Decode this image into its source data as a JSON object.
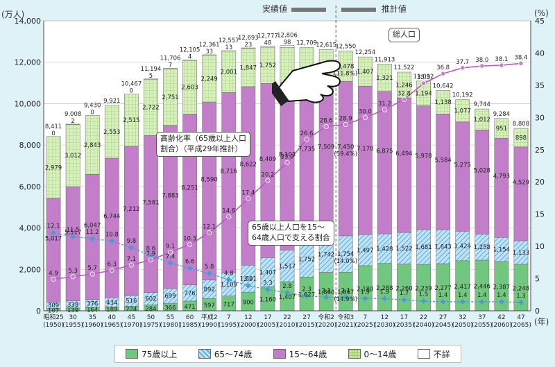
{
  "header": {
    "jisseki": "実績値",
    "suikei": "推計値",
    "left_unit": "(万人)",
    "right_unit": "(%)",
    "year_unit": "(年)"
  },
  "callouts": {
    "total": "総人口",
    "rate": "高齢化率（65歳以上人口\n割合）（平成29年推計）",
    "support": "65歳以上人口を15～\n64歳人口で支える割合"
  },
  "legend": [
    {
      "label": "75歳以上",
      "color": "#72c77f",
      "pattern": "solid"
    },
    {
      "label": "65～74歳",
      "color": "#8ccfee",
      "pattern": "hatch"
    },
    {
      "label": "15～64歳",
      "color": "#c27ec8",
      "pattern": "solid"
    },
    {
      "label": "0～14歳",
      "color": "#c5e6a0",
      "pattern": "grid"
    },
    {
      "label": "不詳",
      "color": "#ffffff",
      "pattern": "solid"
    }
  ],
  "chart_data": {
    "type": "bar",
    "stacked": true,
    "left_axis": {
      "min": 0,
      "max": 14000,
      "ticks": [
        0,
        2000,
        4000,
        6000,
        8000,
        10000,
        12000,
        14000
      ]
    },
    "right_axis": {
      "min": 0,
      "max": 45,
      "ticks": [
        0,
        5,
        10,
        15,
        20,
        25,
        30,
        35,
        40,
        45
      ]
    },
    "divider_after_index": 14,
    "categories": [
      {
        "era": "昭和25",
        "year": "(1950)"
      },
      {
        "era": "30",
        "year": "(1955)"
      },
      {
        "era": "35",
        "year": "(1960)"
      },
      {
        "era": "40",
        "year": "(1965)"
      },
      {
        "era": "45",
        "year": "(1970)"
      },
      {
        "era": "50",
        "year": "(1975)"
      },
      {
        "era": "55",
        "year": "(1980)"
      },
      {
        "era": "60",
        "year": "(1985)"
      },
      {
        "era": "平成2",
        "year": "(1990)"
      },
      {
        "era": "7",
        "year": "(1995)"
      },
      {
        "era": "12",
        "year": "(2000)"
      },
      {
        "era": "17",
        "year": "(2005)"
      },
      {
        "era": "22",
        "year": "(2010)"
      },
      {
        "era": "27",
        "year": "(2015)"
      },
      {
        "era": "令和2",
        "year": "(2020)"
      },
      {
        "era": "令和3",
        "year": "(2021)"
      },
      {
        "era": "7",
        "year": "(2025)"
      },
      {
        "era": "12",
        "year": "(2030)"
      },
      {
        "era": "17",
        "year": "(2035)"
      },
      {
        "era": "22",
        "year": "(2040)"
      },
      {
        "era": "27",
        "year": "(2045)"
      },
      {
        "era": "32",
        "year": "(2050)"
      },
      {
        "era": "37",
        "year": "(2055)"
      },
      {
        "era": "42",
        "year": "(2060)"
      },
      {
        "era": "47",
        "year": "(2065)"
      }
    ],
    "series": [
      {
        "name": "75歳以上",
        "values": [
          107,
          139,
          164,
          189,
          224,
          284,
          366,
          471,
          597,
          717,
          900,
          1160,
          1407,
          1627,
          1860,
          1867,
          2180,
          2288,
          2260,
          2239,
          2277,
          2417,
          2446,
          2387,
          2248
        ]
      },
      {
        "name": "65～74歳",
        "values": [
          309,
          338,
          376,
          434,
          516,
          602,
          699,
          776,
          892,
          1109,
          1301,
          1407,
          1517,
          1752,
          1742,
          1754,
          1497,
          1428,
          1522,
          1681,
          1643,
          1424,
          1258,
          1154,
          1133
        ]
      },
      {
        "name": "15～64歳",
        "values": [
          5017,
          5517,
          6047,
          6744,
          7212,
          7581,
          7883,
          8251,
          8590,
          8716,
          8622,
          8409,
          8103,
          7735,
          7509,
          7450,
          7170,
          6875,
          6494,
          5978,
          5584,
          5275,
          5028,
          4793,
          4529
        ]
      },
      {
        "name": "0～14歳",
        "values": [
          2979,
          3012,
          2843,
          2553,
          2515,
          2722,
          2751,
          2603,
          2249,
          2001,
          1847,
          1752,
          1680,
          1595,
          1503,
          1478,
          1407,
          1321,
          1246,
          1194,
          1138,
          1077,
          1012,
          951,
          898
        ]
      },
      {
        "name": "不詳",
        "values": [
          0,
          2,
          0,
          0,
          0,
          5,
          7,
          4,
          33,
          13,
          23,
          48,
          98,
          0,
          0,
          0,
          0,
          0,
          0,
          0,
          0,
          0,
          0,
          0,
          0
        ]
      }
    ],
    "totals": [
      8411,
      9008,
      9430,
      9921,
      10467,
      11194,
      11706,
      12105,
      12361,
      12557,
      12693,
      12777,
      12806,
      12709,
      12615,
      12550,
      12254,
      11913,
      11522,
      11092,
      10642,
      10192,
      9744,
      9284,
      8808
    ],
    "visible_value_labels": {
      "u75": [
        "107",
        "139",
        "164",
        "189",
        "224",
        "284",
        "366",
        "471",
        "597",
        "717",
        "900",
        "1,160",
        "1,407",
        "1,627",
        "1,860",
        "1,867\n(14.9%)",
        "2,180",
        "2,288",
        "2,260",
        "2,239",
        "2,277",
        "2,417",
        "2,446",
        "2,387",
        "2,248"
      ],
      "s65": [
        "309",
        "338",
        "376",
        "434",
        "516",
        "602",
        "699",
        "776",
        "892",
        "1,109",
        "1,301",
        "1,407",
        "1,517",
        "1,752",
        "1,742",
        "1,754\n(14.0%)",
        "1,497",
        "1,428",
        "1,522",
        "1,681",
        "1,643",
        "1,424",
        "1,258",
        "1,154",
        "1,133"
      ],
      "w": [
        "5,017",
        "5,517",
        "6,047",
        "6,744",
        "7,212",
        "7,581",
        "7,883",
        "8,251",
        "8,590",
        "8,716",
        "8,622",
        "8,409",
        "8,103",
        "7,735",
        "7,509",
        "7,450\n(59.4%)",
        "7,170",
        "6,875",
        "6,494",
        "5,978",
        "5,584",
        "5,275",
        "5,028",
        "4,793",
        "4,529"
      ],
      "c": [
        "2,979",
        "3,012",
        "2,843",
        "2,553",
        "2,515",
        "2,722",
        "2,751",
        "2,603",
        "2,249",
        "2,001",
        "1,847",
        "1,752",
        "",
        "",
        "",
        "1,478\n(11.8%)",
        "1,407",
        "1,321",
        "1,246",
        "1,194",
        "1,138",
        "1,077",
        "1,012",
        "951",
        "898"
      ],
      "u": [
        "0",
        "2",
        "0",
        "",
        "0",
        "5",
        "7",
        "4",
        "33",
        "13",
        "23",
        "48",
        "98",
        "",
        "",
        "",
        "",
        "",
        "",
        "",
        "",
        "",
        "",
        "",
        ""
      ],
      "tot": [
        "8,411",
        "9,008",
        "9,430",
        "9,921",
        "10,467",
        "11,194",
        "11,706",
        "12,105",
        "12,361",
        "12,557",
        "12,693",
        "12,777",
        "12,806",
        "12,709",
        "12,615",
        "12,550",
        "12,254",
        "11,913",
        "11,522",
        "11,092",
        "10,642",
        "10,192",
        "9,744",
        "9,284",
        "8,808"
      ]
    },
    "aging_rate": {
      "name": "高齢化率",
      "values": [
        4.9,
        5.3,
        5.7,
        6.3,
        7.1,
        7.9,
        9.1,
        10.3,
        12.1,
        14.6,
        17.4,
        20.2,
        23.0,
        26.6,
        28.6,
        28.9,
        30.0,
        31.2,
        32.8,
        35.3,
        36.8,
        37.7,
        38.0,
        38.1,
        38.4
      ]
    },
    "support_ratio": {
      "name": "65歳以上人口を15～64歳人口で支える割合",
      "values": [
        12.1,
        11.5,
        11.2,
        10.8,
        9.8,
        8.6,
        7.4,
        6.6,
        5.8,
        4.8,
        3.9,
        3.3,
        2.8,
        2.3,
        2.1,
        2.1,
        1.9,
        1.9,
        1.7,
        1.5,
        1.4,
        1.4,
        1.4,
        1.4,
        1.3
      ]
    }
  }
}
